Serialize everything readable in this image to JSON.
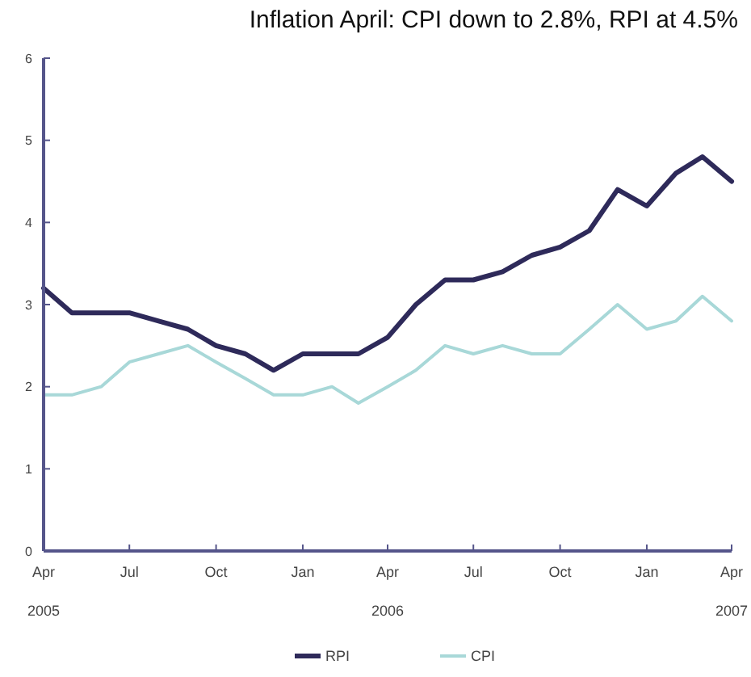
{
  "chart_data": {
    "type": "line",
    "title": "Inflation April: CPI down to 2.8%, RPI at 4.5%",
    "x": [
      "2005-04",
      "2005-05",
      "2005-06",
      "2005-07",
      "2005-08",
      "2005-09",
      "2005-10",
      "2005-11",
      "2005-12",
      "2006-01",
      "2006-02",
      "2006-03",
      "2006-04",
      "2006-05",
      "2006-06",
      "2006-07",
      "2006-08",
      "2006-09",
      "2006-10",
      "2006-11",
      "2006-12",
      "2007-01",
      "2007-02",
      "2007-03",
      "2007-04"
    ],
    "series": [
      {
        "name": "RPI",
        "color": "#2e2a5a",
        "values": [
          3.2,
          2.9,
          2.9,
          2.9,
          2.8,
          2.7,
          2.5,
          2.4,
          2.2,
          2.4,
          2.4,
          2.4,
          2.6,
          3.0,
          3.3,
          3.3,
          3.4,
          3.6,
          3.7,
          3.9,
          4.4,
          4.2,
          4.6,
          4.8,
          4.5
        ]
      },
      {
        "name": "CPI",
        "color": "#a8d8d8",
        "values": [
          1.9,
          1.9,
          2.0,
          2.3,
          2.4,
          2.5,
          2.3,
          2.1,
          1.9,
          1.9,
          2.0,
          1.8,
          2.0,
          2.2,
          2.5,
          2.4,
          2.5,
          2.4,
          2.4,
          2.7,
          3.0,
          2.7,
          2.8,
          3.1,
          2.8
        ]
      }
    ],
    "xlim": [
      "2005-04",
      "2007-04"
    ],
    "xticks": [
      {
        "value": "2005-04",
        "label": "Apr"
      },
      {
        "value": "2005-07",
        "label": "Jul"
      },
      {
        "value": "2005-10",
        "label": "Oct"
      },
      {
        "value": "2006-01",
        "label": "Jan"
      },
      {
        "value": "2006-04",
        "label": "Apr"
      },
      {
        "value": "2006-07",
        "label": "Jul"
      },
      {
        "value": "2006-10",
        "label": "Oct"
      },
      {
        "value": "2007-01",
        "label": "Jan"
      },
      {
        "value": "2007-04",
        "label": "Apr"
      }
    ],
    "annotations": [
      "2005",
      "2006",
      "2007"
    ],
    "ylim": [
      0,
      6
    ],
    "yticks": [
      0,
      1,
      2,
      3,
      4,
      5,
      6
    ],
    "grid": false,
    "legend": "bottom",
    "marker": "none",
    "line_style": "solid"
  }
}
